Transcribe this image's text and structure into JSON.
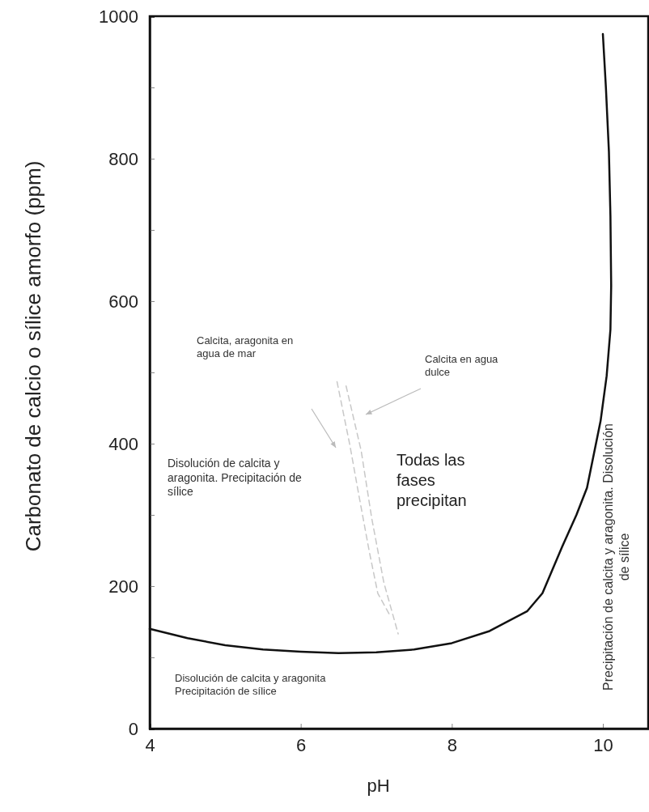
{
  "chart_data": {
    "type": "line",
    "xlabel": "pH",
    "ylabel": "Carbonato de calcio o sílice amorfo (ppm)",
    "xlim": [
      4,
      10.6
    ],
    "xticks": [
      4,
      6,
      8,
      10
    ],
    "ylim": [
      0,
      1000
    ],
    "yticks": [
      0,
      {
        "value": 100,
        "label": null
      },
      200,
      {
        "value": 300,
        "label": null
      },
      400,
      {
        "value": 500,
        "label": null
      },
      600,
      {
        "value": 700,
        "label": null
      },
      800,
      {
        "value": 900,
        "label": null
      },
      1000
    ],
    "grid": false,
    "marker": "none",
    "series": [
      {
        "color": "#111111",
        "line_style": "solid",
        "x": [
          4,
          4.5,
          5,
          5.5,
          6,
          6.5,
          7,
          7.5,
          8,
          8.5,
          9,
          9.2,
          9.46,
          9.65,
          9.79,
          9.97,
          10.05,
          10.1,
          10.11,
          10.1,
          10.08,
          10.04,
          10.0
        ],
        "values": [
          140,
          127,
          117,
          111,
          108,
          106,
          107,
          111,
          120,
          137,
          165,
          190,
          255,
          300,
          338,
          432,
          495,
          560,
          622,
          720,
          810,
          900,
          975
        ]
      },
      {
        "color": "#c8c8c8",
        "line_style": "dashed",
        "x": [
          6.48,
          6.65,
          6.76,
          6.91,
          7.02,
          7.18
        ],
        "values": [
          487,
          398,
          333,
          247,
          190,
          159
        ]
      },
      {
        "color": "#c8c8c8",
        "line_style": "dashed",
        "x": [
          6.6,
          6.8,
          6.94,
          7.1,
          7.29
        ],
        "values": [
          481,
          390,
          295,
          205,
          133
        ]
      }
    ],
    "annotations": [
      "Calcita, aragonita en agua de mar",
      "Calcita en agua dulce",
      "Disolución de calcita y aragonita. Precipitación de sílice",
      "Todas las fases precipitan",
      "Disolución de calcita y aragonita Precipitación de sílice",
      "Precipitación de calcita y aragonita. Disolución de sílice"
    ]
  }
}
